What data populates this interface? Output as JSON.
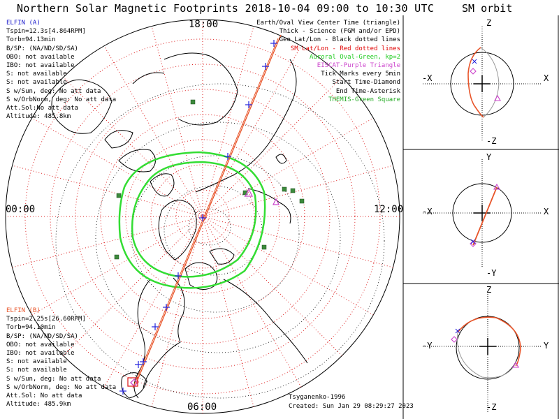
{
  "title": "Northern Solar Magnetic Footprints 2018-10-04 09:00 to 10:30 UTC",
  "sm_title": "SM orbit",
  "local_time_labels": {
    "top": "18:00",
    "left": "00:00",
    "right": "12:00",
    "bottom": "06:00"
  },
  "elfin_a": {
    "name": "ELFIN (A)",
    "color": "#1a1acc",
    "lines": [
      "Tspin=12.3s[4.864RPM]",
      "Torb=94.13min",
      "B/SP: (NA/ND/SD/SA)",
      "OBO: not available",
      "IBO: not available",
      "S: not available",
      "S: not available",
      "S w/Sun, deg: No att data",
      "S w/OrbNorm, deg: No att data",
      "Att.Sol:No att data",
      "Altitude: 485.8km"
    ]
  },
  "elfin_b": {
    "name": "ELFIN (B)",
    "color": "#e8552a",
    "lines": [
      "Tspin=2.25s[26.60RPM]",
      "Torb=94.10min",
      "B/SP: (NA/ND/SD/SA)",
      "OBO: not available",
      "IBO: not available",
      "S: not available",
      "S: not available",
      "S w/Sun, deg: No att data",
      "S w/OrbNorm, deg: No att data",
      "Att.Sol: No att data",
      "Altitude: 485.9km"
    ]
  },
  "legend": [
    {
      "text": "Earth/Oval View Center Time (triangle)",
      "color": "#000000"
    },
    {
      "text": "Thick - Science (FGM and/or EPD)",
      "color": "#000000"
    },
    {
      "text": "Geo Lat/Lon - Black dotted lines",
      "color": "#000000"
    },
    {
      "text": "SM Lat/Lon - Red dotted lines",
      "color": "#e00000"
    },
    {
      "text": "Auroral Oval-Green, kp=2",
      "color": "#22cc22"
    },
    {
      "text": "EISCAT-Purple Triangle",
      "color": "#cc44cc"
    },
    {
      "text": "Tick Marks every 5min",
      "color": "#000000"
    },
    {
      "text": "Start Time-Diamond",
      "color": "#000000"
    },
    {
      "text": "End Time-Asterisk",
      "color": "#000000"
    },
    {
      "text": "THEMIS-Green Square",
      "color": "#22aa22"
    }
  ],
  "credit": "Tsyganenko-1996",
  "created": "Created: Sun Jan 29 08:29:27 2023",
  "sm_panels": [
    {
      "up": "Z",
      "down": "-Z",
      "left": "-X",
      "right": "X"
    },
    {
      "up": "Y",
      "down": "-Y",
      "left": "-X",
      "right": "X"
    },
    {
      "up": "Z",
      "down": "-Z",
      "left": "-Y",
      "right": "Y"
    }
  ],
  "colors": {
    "orbit": "#e8552a",
    "tick": "#2222dd",
    "auroral_oval": "#33dd33",
    "sm_grid": "#dd2222",
    "themis": "#3c8a3c",
    "eiscat": "#cc44cc"
  }
}
